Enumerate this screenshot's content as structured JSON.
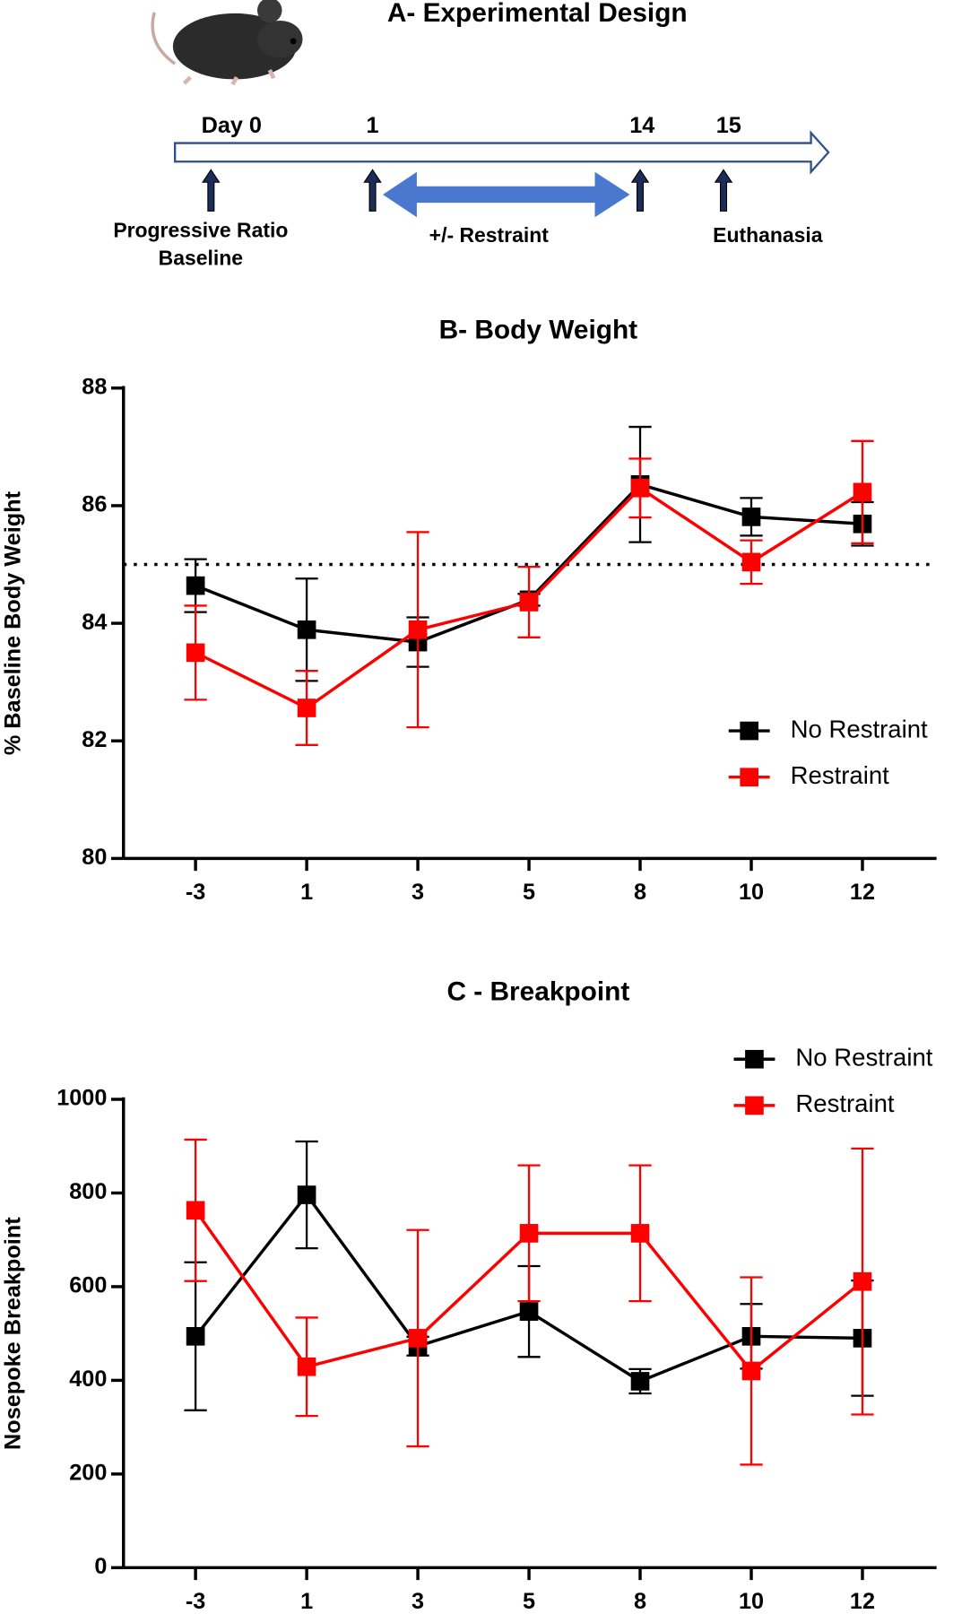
{
  "design": {
    "title": "A- Experimental Design",
    "days": [
      "Day 0",
      "1",
      "14",
      "15"
    ],
    "labels": [
      [
        "Progressive Ratio",
        "Baseline"
      ],
      [
        "+/- Restraint"
      ],
      [
        "Euthanasia"
      ]
    ]
  },
  "chart_data": [
    {
      "type": "line",
      "title": "B- Body Weight",
      "y_label": "% Baseline Body Weight",
      "categories": [
        "-3",
        "1",
        "3",
        "5",
        "8",
        "10",
        "12"
      ],
      "ylim": [
        80,
        88
      ],
      "yticks": [
        80,
        82,
        84,
        86,
        88
      ],
      "reference_line": 85,
      "legend": "right",
      "series": [
        {
          "name": "No Restraint",
          "color": "#000000",
          "values": [
            84.64,
            83.89,
            83.68,
            84.4,
            86.36,
            85.81,
            85.69
          ],
          "errors": [
            0.45,
            0.87,
            0.42,
            0.1,
            0.98,
            0.32,
            0.37
          ]
        },
        {
          "name": "Restraint",
          "color": "#ff0000",
          "values": [
            83.5,
            82.56,
            83.89,
            84.36,
            86.3,
            85.04,
            86.23
          ],
          "errors": [
            0.8,
            0.63,
            1.66,
            0.6,
            0.5,
            0.37,
            0.87
          ]
        }
      ]
    },
    {
      "type": "line",
      "title": "C - Breakpoint",
      "y_label": "Nosepoke Breakpoint",
      "categories": [
        "-3",
        "1",
        "3",
        "5",
        "8",
        "10",
        "12"
      ],
      "ylim": [
        0,
        1000
      ],
      "yticks": [
        0,
        200,
        400,
        600,
        800,
        1000
      ],
      "legend": "top-right",
      "series": [
        {
          "name": "No Restraint",
          "color": "#000000",
          "values": [
            494,
            796,
            473,
            547,
            398,
            494,
            490
          ],
          "errors": [
            158,
            114,
            20,
            97,
            26,
            69,
            123
          ]
        },
        {
          "name": "Restraint",
          "color": "#ff0000",
          "values": [
            763,
            429,
            490,
            714,
            714,
            420,
            611
          ],
          "errors": [
            151,
            105,
            231,
            145,
            145,
            200,
            284
          ]
        }
      ]
    }
  ]
}
